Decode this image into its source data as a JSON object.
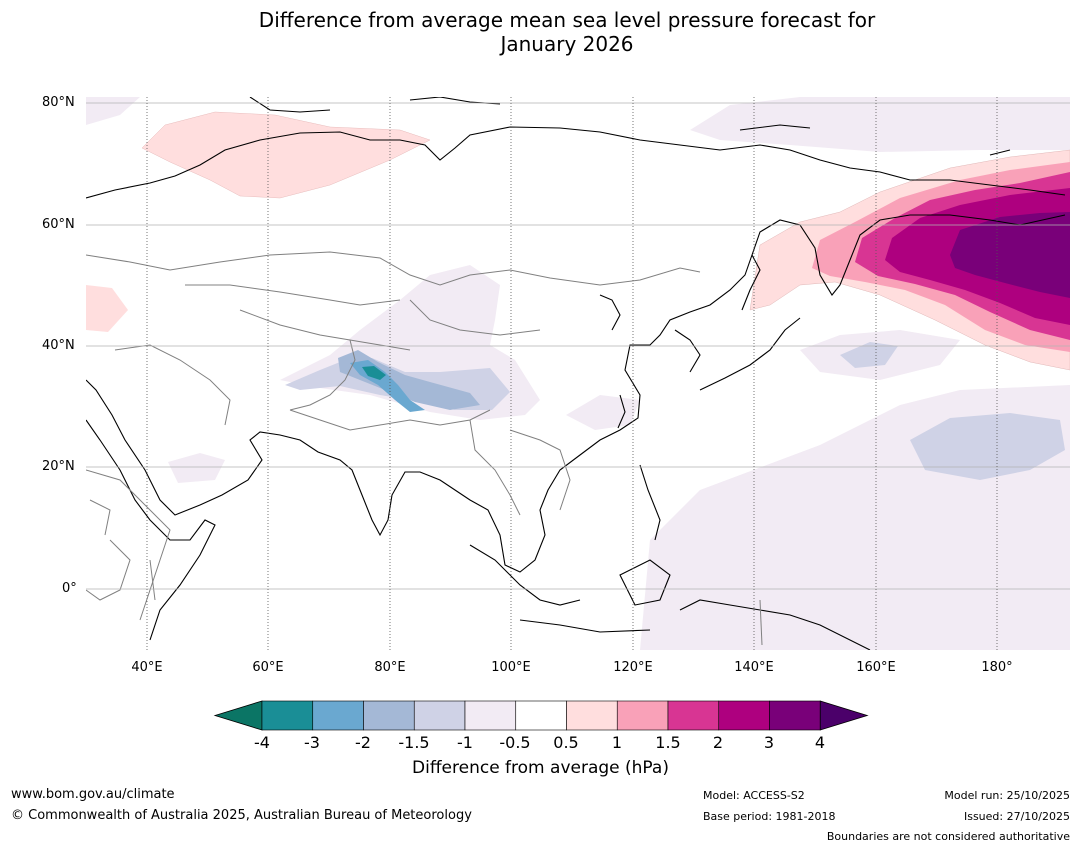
{
  "title": {
    "line1": "Difference from average mean sea level pressure forecast for",
    "line2": "January 2026"
  },
  "map": {
    "latitude_labels": [
      "80°N",
      "60°N",
      "40°N",
      "20°N",
      "0°"
    ],
    "longitude_labels": [
      "40°E",
      "60°E",
      "80°E",
      "100°E",
      "120°E",
      "140°E",
      "160°E",
      "180°"
    ],
    "anomaly_regions": [
      {
        "name": "north-pacific-high",
        "max_class": 4,
        "sign": "positive"
      },
      {
        "name": "barents-kara-high",
        "class": 0.5,
        "sign": "positive"
      },
      {
        "name": "tibetan-plateau-low",
        "min_class": -3,
        "sign": "negative"
      },
      {
        "name": "west-pacific-low",
        "class": -1.5,
        "sign": "negative"
      }
    ]
  },
  "colorbar": {
    "title": "Difference from average (hPa)",
    "ticks": [
      "-4",
      "-3",
      "-2",
      "-1.5",
      "-1",
      "-0.5",
      "0.5",
      "1",
      "1.5",
      "2",
      "3",
      "4"
    ],
    "colors": [
      "#0b7565",
      "#1a8e96",
      "#6aa8d0",
      "#a4b8d6",
      "#cfd2e6",
      "#f2ebf4",
      "#ffffff",
      "#ffdede",
      "#f9a1b8",
      "#d83593",
      "#ae007f",
      "#790079",
      "#4b006a"
    ]
  },
  "footer": {
    "url": "www.bom.gov.au/climate",
    "copyright": "© Commonwealth of Australia 2025, Australian Bureau of Meteorology",
    "model": "Model: ACCESS-S2",
    "base_period": "Base period: 1981-2018",
    "model_run": "Model run: 25/10/2025",
    "issued": "Issued: 27/10/2025",
    "disclaimer": "Boundaries are not considered authoritative"
  }
}
